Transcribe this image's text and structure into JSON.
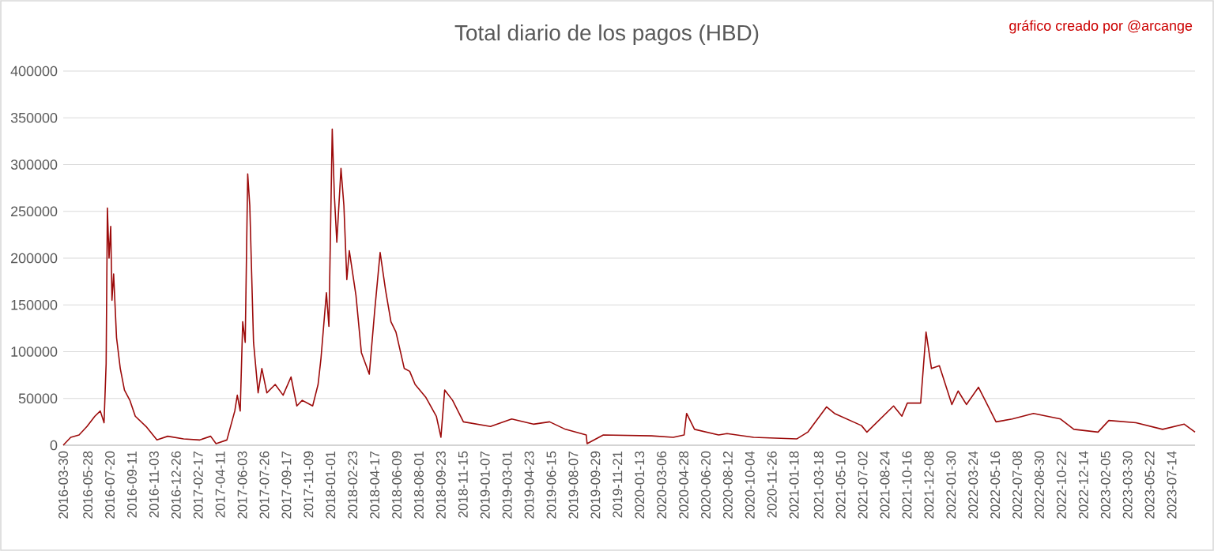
{
  "chart_data": {
    "type": "line",
    "title": "Total diario de los pagos (HBD)",
    "annotations": [
      "gráfico creado por @arcange"
    ],
    "x": [
      "2016-03-30",
      "2016-04-17",
      "2016-05-07",
      "2016-05-26",
      "2016-06-14",
      "2016-06-27",
      "2016-07-06",
      "2016-07-11",
      "2016-07-14",
      "2016-07-18",
      "2016-07-22",
      "2016-07-25",
      "2016-07-29",
      "2016-08-05",
      "2016-08-14",
      "2016-08-24",
      "2016-09-06",
      "2016-09-19",
      "2016-10-15",
      "2016-11-10",
      "2016-12-06",
      "2017-01-13",
      "2017-02-21",
      "2017-03-19",
      "2017-04-01",
      "2017-04-27",
      "2017-05-16",
      "2017-05-22",
      "2017-05-29",
      "2017-06-04",
      "2017-06-10",
      "2017-06-16",
      "2017-06-21",
      "2017-06-30",
      "2017-07-11",
      "2017-07-20",
      "2017-08-01",
      "2017-08-21",
      "2017-09-09",
      "2017-09-28",
      "2017-10-12",
      "2017-10-25",
      "2017-11-19",
      "2017-12-02",
      "2017-12-09",
      "2017-12-22",
      "2017-12-28",
      "2018-01-05",
      "2018-01-10",
      "2018-01-16",
      "2018-01-26",
      "2018-02-02",
      "2018-02-09",
      "2018-02-15",
      "2018-03-03",
      "2018-03-16",
      "2018-03-26",
      "2018-04-04",
      "2018-04-17",
      "2018-04-30",
      "2018-05-13",
      "2018-05-26",
      "2018-06-07",
      "2018-06-27",
      "2018-07-10",
      "2018-07-23",
      "2018-08-18",
      "2018-09-12",
      "2018-09-23",
      "2018-10-02",
      "2018-10-21",
      "2018-11-16",
      "2019-01-20",
      "2019-03-12",
      "2019-05-03",
      "2019-06-11",
      "2019-07-19",
      "2019-09-07",
      "2019-09-09",
      "2019-10-18",
      "2020-02-11",
      "2020-04-03",
      "2020-04-29",
      "2020-05-05",
      "2020-05-24",
      "2020-07-21",
      "2020-08-10",
      "2020-10-13",
      "2021-01-25",
      "2021-02-20",
      "2021-04-06",
      "2021-04-25",
      "2021-06-29",
      "2021-07-12",
      "2021-09-14",
      "2021-10-04",
      "2021-10-17",
      "2021-11-18",
      "2021-12-01",
      "2021-12-14",
      "2022-01-02",
      "2022-02-01",
      "2022-02-16",
      "2022-03-08",
      "2022-04-06",
      "2022-05-18",
      "2022-06-26",
      "2022-08-16",
      "2022-10-20",
      "2022-11-21",
      "2023-01-18",
      "2023-02-13",
      "2023-04-19",
      "2023-06-22",
      "2023-08-13",
      "2023-09-08"
    ],
    "values": [
      0,
      8500,
      11000,
      20000,
      31000,
      36600,
      24000,
      87000,
      253500,
      200000,
      234000,
      155000,
      183000,
      115000,
      82000,
      59000,
      48000,
      31000,
      20000,
      5600,
      9600,
      6800,
      5600,
      9600,
      1700,
      5600,
      36600,
      53500,
      36600,
      132000,
      110000,
      290000,
      256000,
      110000,
      56000,
      82000,
      56000,
      65000,
      53500,
      73000,
      42000,
      48000,
      42000,
      65000,
      93000,
      163000,
      127000,
      338000,
      268000,
      217000,
      296000,
      256000,
      177000,
      208000,
      160000,
      99000,
      87000,
      76000,
      144000,
      206000,
      166000,
      132000,
      121000,
      82000,
      79000,
      65000,
      51000,
      31000,
      8500,
      59000,
      48000,
      25000,
      20000,
      28000,
      22500,
      25000,
      17000,
      11000,
      1700,
      11000,
      10000,
      8500,
      11000,
      34000,
      17000,
      11000,
      12400,
      8500,
      6800,
      14000,
      41000,
      34000,
      21000,
      14000,
      42000,
      31000,
      45000,
      45000,
      121000,
      82000,
      85000,
      43500,
      58000,
      43500,
      62000,
      25000,
      28000,
      34000,
      28000,
      17000,
      14000,
      26500,
      24000,
      17000,
      22500,
      14000
    ],
    "color": "#9c0a0a",
    "xlim": [
      "2016-03-30",
      "2023-09-08"
    ],
    "xticks": [
      "2016-03-30",
      "2016-05-28",
      "2016-07-20",
      "2016-09-11",
      "2016-11-03",
      "2016-12-26",
      "2017-02-17",
      "2017-04-11",
      "2017-06-03",
      "2017-07-26",
      "2017-09-17",
      "2017-11-09",
      "2018-01-01",
      "2018-02-23",
      "2018-04-17",
      "2018-06-09",
      "2018-08-01",
      "2018-09-23",
      "2018-11-15",
      "2019-01-07",
      "2019-03-01",
      "2019-04-23",
      "2019-06-15",
      "2019-08-07",
      "2019-09-29",
      "2019-11-21",
      "2020-01-13",
      "2020-03-06",
      "2020-04-28",
      "2020-06-20",
      "2020-08-12",
      "2020-10-04",
      "2020-11-26",
      "2021-01-18",
      "2021-03-18",
      "2021-05-10",
      "2021-07-02",
      "2021-08-24",
      "2021-10-16",
      "2021-12-08",
      "2022-01-30",
      "2022-03-24",
      "2022-05-16",
      "2022-07-08",
      "2022-08-30",
      "2022-10-22",
      "2022-12-14",
      "2023-02-05",
      "2023-03-30",
      "2023-05-22",
      "2023-07-14"
    ],
    "ylim": [
      0,
      400000
    ],
    "yticks": [
      0,
      50000,
      100000,
      150000,
      200000,
      250000,
      300000,
      350000,
      400000
    ],
    "grid": "y",
    "marker": "none",
    "line_style": "solid"
  }
}
